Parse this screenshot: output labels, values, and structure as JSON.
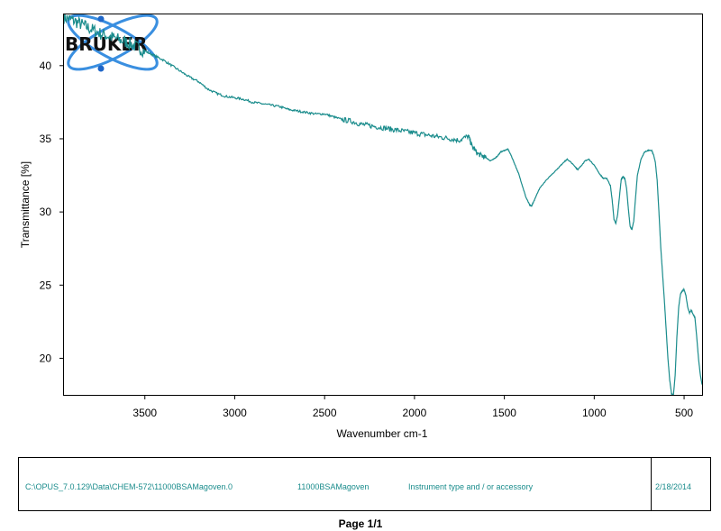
{
  "chart_data": {
    "type": "line",
    "xlabel": "Wavenumber cm-1",
    "ylabel": "Transmittance [%]",
    "x_reversed": true,
    "xlim": [
      3950,
      400
    ],
    "ylim": [
      17.5,
      43.5
    ],
    "x_ticks": [
      3500,
      3000,
      2500,
      2000,
      1500,
      1000,
      500
    ],
    "y_ticks": [
      20,
      25,
      30,
      35,
      40
    ],
    "grid": false,
    "line_color": "#1a8c8c",
    "series": [
      {
        "x": [
          3950,
          3900,
          3850,
          3800,
          3750,
          3700,
          3650,
          3600,
          3550,
          3500,
          3450,
          3400,
          3350,
          3300,
          3250,
          3200,
          3150,
          3100,
          3050,
          3000,
          2950,
          2900,
          2850,
          2800,
          2750,
          2700,
          2650,
          2600,
          2550,
          2500,
          2450,
          2400,
          2350,
          2300,
          2250,
          2200,
          2150,
          2100,
          2050,
          2000,
          1950,
          1900,
          1850,
          1800,
          1750,
          1700,
          1680,
          1650,
          1620,
          1600,
          1580,
          1560,
          1540,
          1520,
          1500,
          1480,
          1460,
          1440,
          1420,
          1400,
          1380,
          1360,
          1350,
          1340,
          1320,
          1300,
          1250,
          1200,
          1170,
          1150,
          1130,
          1100,
          1090,
          1070,
          1050,
          1030,
          1000,
          970,
          950,
          930,
          910,
          900,
          890,
          880,
          870,
          860,
          850,
          840,
          830,
          820,
          810,
          800,
          790,
          780,
          770,
          760,
          740,
          720,
          700,
          680,
          670,
          660,
          650,
          640,
          630,
          620,
          610,
          600,
          590,
          580,
          570,
          560,
          550,
          540,
          530,
          520,
          510,
          500,
          490,
          480,
          470,
          460,
          450,
          440,
          430,
          420,
          410,
          400
        ],
        "values": [
          43.3,
          43.1,
          42.8,
          42.5,
          42.2,
          42.0,
          41.8,
          41.6,
          41.3,
          41.0,
          40.7,
          40.4,
          40.0,
          39.6,
          39.2,
          38.9,
          38.4,
          38.1,
          37.9,
          37.8,
          37.7,
          37.5,
          37.4,
          37.3,
          37.2,
          37.0,
          36.9,
          36.8,
          36.7,
          36.7,
          36.5,
          36.3,
          36.2,
          36.0,
          35.9,
          35.8,
          35.7,
          35.6,
          35.5,
          35.4,
          35.3,
          35.2,
          35.1,
          35.0,
          34.9,
          35.2,
          34.5,
          34.0,
          33.8,
          33.7,
          33.5,
          33.6,
          33.8,
          34.1,
          34.2,
          34.3,
          33.8,
          33.2,
          32.6,
          31.8,
          31.0,
          30.5,
          30.4,
          30.6,
          31.2,
          31.7,
          32.4,
          33.0,
          33.4,
          33.6,
          33.4,
          33.0,
          32.9,
          33.2,
          33.5,
          33.6,
          33.2,
          32.6,
          32.3,
          32.3,
          31.8,
          30.8,
          29.5,
          29.2,
          29.8,
          31.0,
          32.2,
          32.4,
          32.3,
          31.6,
          30.2,
          29.0,
          28.8,
          29.4,
          31.0,
          32.5,
          33.6,
          34.1,
          34.2,
          34.2,
          33.9,
          33.4,
          32.2,
          30.0,
          27.6,
          25.8,
          24.0,
          22.0,
          20.0,
          18.5,
          17.6,
          17.4,
          18.8,
          21.5,
          23.5,
          24.4,
          24.6,
          24.7,
          24.3,
          23.5,
          23.1,
          23.3,
          23.0,
          22.8,
          21.5,
          20.0,
          18.9,
          18.2
        ]
      }
    ],
    "logo": {
      "text": "BRUKER"
    }
  },
  "footer": {
    "file_path": "C:\\OPUS_7.0.129\\Data\\CHEM-572\\11000BSAMagoven.0",
    "sample_name": "11000BSAMagoven",
    "instrument": "Instrument type and / or accessory",
    "date": "2/18/2014"
  },
  "page_label": "Page 1/1"
}
